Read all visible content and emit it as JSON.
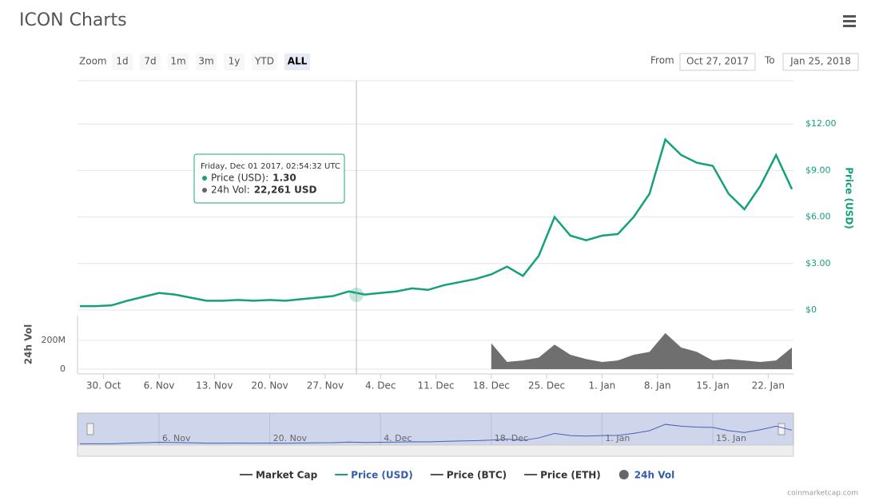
{
  "title": "ICON Charts",
  "zoom": {
    "label": "Zoom",
    "buttons": [
      "1d",
      "7d",
      "1m",
      "3m",
      "1y",
      "YTD",
      "ALL"
    ],
    "active": "ALL"
  },
  "range": {
    "from_label": "From",
    "from": "Oct 27, 2017",
    "to_label": "To",
    "to": "Jan 25, 2018"
  },
  "tooltip": {
    "date": "Friday, Dec 01 2017, 02:54:32 UTC",
    "items": [
      {
        "name": "Price (USD):",
        "value": "1.30"
      },
      {
        "name": "24h Vol:",
        "value": "22,261 USD"
      }
    ]
  },
  "credit": "coinmarketcap.com",
  "legend": [
    {
      "name": "Market Cap",
      "color": "#555555"
    },
    {
      "name": "Price (USD)",
      "color": "#15a07c"
    },
    {
      "name": "Price (BTC)",
      "color": "#555555"
    },
    {
      "name": "Price (ETH)",
      "color": "#555555"
    },
    {
      "name": "24h Vol",
      "color": "#666666"
    }
  ],
  "chart_data": {
    "type": "line",
    "x": [
      "2017-10-27",
      "2017-10-29",
      "2017-10-31",
      "2017-11-02",
      "2017-11-04",
      "2017-11-06",
      "2017-11-08",
      "2017-11-10",
      "2017-11-12",
      "2017-11-14",
      "2017-11-16",
      "2017-11-18",
      "2017-11-20",
      "2017-11-22",
      "2017-11-24",
      "2017-11-26",
      "2017-11-28",
      "2017-11-30",
      "2017-12-02",
      "2017-12-04",
      "2017-12-06",
      "2017-12-08",
      "2017-12-10",
      "2017-12-12",
      "2017-12-14",
      "2017-12-16",
      "2017-12-18",
      "2017-12-20",
      "2017-12-22",
      "2017-12-24",
      "2017-12-26",
      "2017-12-28",
      "2017-12-30",
      "2018-01-01",
      "2018-01-03",
      "2018-01-05",
      "2018-01-07",
      "2018-01-09",
      "2018-01-11",
      "2018-01-13",
      "2018-01-15",
      "2018-01-17",
      "2018-01-19",
      "2018-01-21",
      "2018-01-23",
      "2018-01-25"
    ],
    "xlim": [
      "2017-10-27",
      "2018-01-25"
    ],
    "xticks": [
      {
        "value": "2017-10-30",
        "label": "30. Oct"
      },
      {
        "value": "2017-11-06",
        "label": "6. Nov"
      },
      {
        "value": "2017-11-13",
        "label": "13. Nov"
      },
      {
        "value": "2017-11-20",
        "label": "20. Nov"
      },
      {
        "value": "2017-11-27",
        "label": "27. Nov"
      },
      {
        "value": "2017-12-04",
        "label": "4. Dec"
      },
      {
        "value": "2017-12-11",
        "label": "11. Dec"
      },
      {
        "value": "2017-12-18",
        "label": "18. Dec"
      },
      {
        "value": "2017-12-25",
        "label": "25. Dec"
      },
      {
        "value": "2018-01-01",
        "label": "1. Jan"
      },
      {
        "value": "2018-01-08",
        "label": "8. Jan"
      },
      {
        "value": "2018-01-15",
        "label": "15. Jan"
      },
      {
        "value": "2018-01-22",
        "label": "22. Jan"
      }
    ],
    "navigator_ticks": [
      {
        "value": "2017-11-06",
        "label": "6. Nov"
      },
      {
        "value": "2017-11-20",
        "label": "20. Nov"
      },
      {
        "value": "2017-12-04",
        "label": "4. Dec"
      },
      {
        "value": "2017-12-18",
        "label": "18. Dec"
      },
      {
        "value": "2018-01-01",
        "label": "1. Jan"
      },
      {
        "value": "2018-01-15",
        "label": "15. Jan"
      }
    ],
    "ylabel": "Price (USD)",
    "ylim": [
      0,
      15
    ],
    "yticks": [
      {
        "value": 0,
        "label": "$0"
      },
      {
        "value": 3,
        "label": "$3.00"
      },
      {
        "value": 6,
        "label": "$6.00"
      },
      {
        "value": 9,
        "label": "$9.00"
      },
      {
        "value": 12,
        "label": "$12.00"
      }
    ],
    "y2label": "24h Vol",
    "y2lim": [
      0,
      360000000
    ],
    "y2ticks": [
      0,
      {
        "value": 200000000,
        "label": "200M"
      }
    ],
    "series": [
      {
        "name": "Price (USD)",
        "color": "#15a07c",
        "values": [
          0.25,
          0.25,
          0.3,
          0.6,
          0.85,
          1.1,
          1.0,
          0.8,
          0.6,
          0.6,
          0.65,
          0.6,
          0.65,
          0.6,
          0.7,
          0.8,
          0.9,
          1.2,
          1.0,
          1.1,
          1.2,
          1.4,
          1.3,
          1.6,
          1.8,
          2.0,
          2.3,
          2.8,
          2.2,
          3.5,
          6.0,
          4.8,
          4.5,
          4.8,
          4.9,
          6.0,
          7.5,
          11.0,
          10.0,
          9.5,
          9.3,
          7.5,
          6.5,
          8.0,
          10.0,
          7.8
        ]
      },
      {
        "name": "24h Vol",
        "color": "#6f6f6f",
        "axis": "y2",
        "values": [
          null,
          null,
          null,
          null,
          null,
          null,
          null,
          null,
          null,
          null,
          null,
          null,
          null,
          null,
          null,
          null,
          null,
          null,
          null,
          null,
          null,
          null,
          null,
          null,
          null,
          null,
          180000000,
          50000000,
          60000000,
          80000000,
          170000000,
          100000000,
          70000000,
          50000000,
          60000000,
          100000000,
          120000000,
          250000000,
          150000000,
          120000000,
          60000000,
          70000000,
          60000000,
          50000000,
          60000000,
          150000000
        ]
      }
    ]
  }
}
